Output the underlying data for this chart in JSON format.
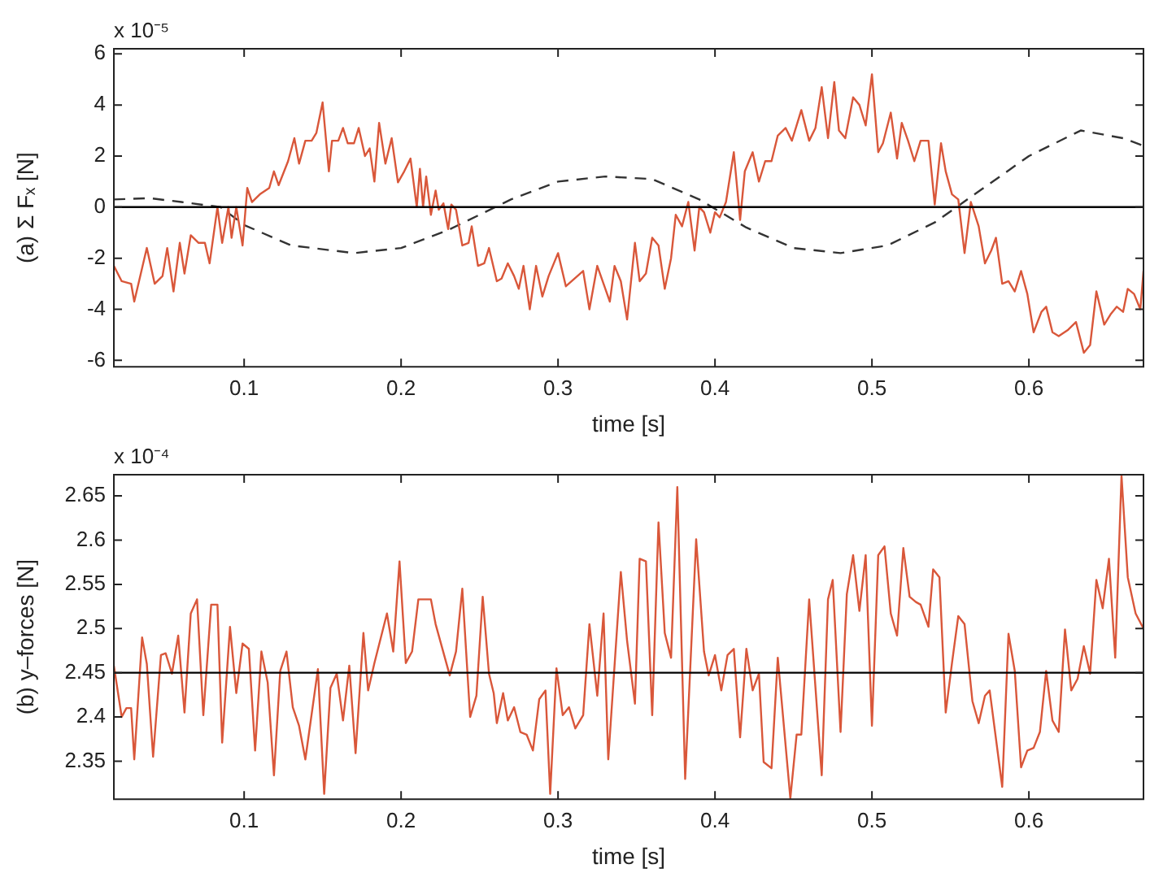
{
  "chart_data": [
    {
      "type": "line",
      "ylabel": "(a) Σ Fₓ [N]",
      "xlabel": "time [s]",
      "annotations": [
        "x 10⁻⁵"
      ],
      "xlim": [
        0.017,
        0.673
      ],
      "xticks": [
        0.1,
        0.2,
        0.3,
        0.4,
        0.5,
        0.6
      ],
      "ylim": [
        -6.25,
        6.2
      ],
      "yticks": [
        -6,
        -4,
        -2,
        0,
        2,
        4,
        6
      ],
      "grid": false,
      "legend": false,
      "marker": "none",
      "ref_lines": [
        {
          "axis": "y",
          "value": 0,
          "color": "#000000"
        }
      ],
      "series": [
        {
          "type": "line",
          "color": "#d9573a",
          "line_style": "solid",
          "x": [
            0.017,
            0.022,
            0.028,
            0.03,
            0.038,
            0.043,
            0.048,
            0.051,
            0.055,
            0.059,
            0.062,
            0.066,
            0.071,
            0.075,
            0.078,
            0.083,
            0.086,
            0.09,
            0.092,
            0.095,
            0.099,
            0.102,
            0.105,
            0.11,
            0.116,
            0.119,
            0.122,
            0.128,
            0.132,
            0.135,
            0.139,
            0.143,
            0.146,
            0.15,
            0.154,
            0.156,
            0.16,
            0.163,
            0.166,
            0.17,
            0.173,
            0.177,
            0.18,
            0.183,
            0.186,
            0.19,
            0.194,
            0.198,
            0.202,
            0.206,
            0.21,
            0.212,
            0.214,
            0.216,
            0.219,
            0.222,
            0.224,
            0.227,
            0.23,
            0.232,
            0.235,
            0.239,
            0.243,
            0.245,
            0.249,
            0.253,
            0.256,
            0.261,
            0.264,
            0.268,
            0.272,
            0.275,
            0.278,
            0.282,
            0.286,
            0.29,
            0.294,
            0.3,
            0.305,
            0.316,
            0.32,
            0.325,
            0.329,
            0.333,
            0.336,
            0.34,
            0.344,
            0.349,
            0.352,
            0.356,
            0.36,
            0.364,
            0.368,
            0.372,
            0.375,
            0.379,
            0.383,
            0.387,
            0.39,
            0.393,
            0.397,
            0.4,
            0.403,
            0.407,
            0.412,
            0.416,
            0.419,
            0.424,
            0.428,
            0.432,
            0.436,
            0.44,
            0.445,
            0.449,
            0.455,
            0.46,
            0.464,
            0.468,
            0.472,
            0.476,
            0.479,
            0.483,
            0.488,
            0.492,
            0.496,
            0.5,
            0.504,
            0.507,
            0.512,
            0.516,
            0.519,
            0.523,
            0.527,
            0.531,
            0.536,
            0.54,
            0.544,
            0.547,
            0.551,
            0.555,
            0.559,
            0.563,
            0.568,
            0.572,
            0.576,
            0.579,
            0.583,
            0.587,
            0.591,
            0.595,
            0.599,
            0.603,
            0.608,
            0.611,
            0.615,
            0.619,
            0.625,
            0.63,
            0.635,
            0.639,
            0.643,
            0.648,
            0.652,
            0.656,
            0.66,
            0.663,
            0.667,
            0.671,
            0.673
          ],
          "values": [
            -2.3,
            -2.9,
            -3.0,
            -3.7,
            -1.6,
            -3.0,
            -2.7,
            -1.6,
            -3.3,
            -1.4,
            -2.6,
            -1.1,
            -1.4,
            -1.4,
            -2.2,
            0,
            -1.4,
            0,
            -1.2,
            0,
            -1.5,
            0.75,
            0.2,
            0.5,
            0.75,
            1.4,
            0.86,
            1.8,
            2.7,
            1.7,
            2.6,
            2.6,
            2.9,
            4.1,
            1.4,
            2.6,
            2.6,
            3.1,
            2.5,
            2.5,
            3.1,
            2.0,
            2.3,
            1.0,
            3.3,
            1.7,
            2.7,
            0.97,
            1.4,
            1.9,
            0,
            1.5,
            0,
            1.2,
            -0.3,
            0.65,
            -0.1,
            0.15,
            -0.86,
            0.1,
            -0.1,
            -1.5,
            -1.4,
            -0.75,
            -2.3,
            -2.2,
            -1.6,
            -2.9,
            -2.8,
            -2.2,
            -2.7,
            -3.2,
            -2.3,
            -4.0,
            -2.3,
            -3.5,
            -2.7,
            -1.8,
            -3.1,
            -2.5,
            -4.0,
            -2.3,
            -3.0,
            -3.7,
            -2.3,
            -2.9,
            -4.4,
            -1.4,
            -2.9,
            -2.6,
            -1.2,
            -1.5,
            -3.2,
            -2.0,
            -0.3,
            -0.75,
            0.2,
            -1.7,
            0,
            -0.2,
            -1.0,
            -0.2,
            -0.4,
            0.2,
            2.15,
            -0.5,
            1.4,
            2.15,
            1.0,
            1.8,
            1.8,
            2.8,
            3.1,
            2.6,
            3.8,
            2.6,
            3.1,
            4.7,
            2.7,
            4.9,
            3.0,
            2.7,
            4.3,
            4.0,
            3.2,
            5.2,
            2.15,
            2.5,
            3.7,
            1.9,
            3.3,
            2.6,
            1.8,
            2.6,
            2.6,
            0.1,
            2.5,
            1.4,
            0.5,
            0.3,
            -1.8,
            0.2,
            -0.75,
            -2.2,
            -1.7,
            -1.2,
            -3.0,
            -2.9,
            -3.3,
            -2.5,
            -3.4,
            -4.9,
            -4.1,
            -3.9,
            -4.9,
            -5.05,
            -4.8,
            -4.5,
            -5.7,
            -5.4,
            -3.3,
            -4.6,
            -4.2,
            -3.9,
            -4.1,
            -3.2,
            -3.4,
            -4.0,
            -2.5
          ]
        },
        {
          "type": "line",
          "color": "#333333",
          "line_style": "dashed",
          "x": [
            0.017,
            0.04,
            0.06,
            0.085,
            0.1,
            0.13,
            0.17,
            0.2,
            0.23,
            0.25,
            0.27,
            0.3,
            0.33,
            0.36,
            0.39,
            0.42,
            0.45,
            0.48,
            0.51,
            0.54,
            0.57,
            0.6,
            0.633,
            0.66,
            0.673
          ],
          "values": [
            0.3,
            0.35,
            0.2,
            0,
            -0.7,
            -1.5,
            -1.8,
            -1.6,
            -0.9,
            -0.3,
            0.3,
            1.0,
            1.2,
            1.1,
            0.3,
            -0.8,
            -1.6,
            -1.8,
            -1.5,
            -0.6,
            0.7,
            2.0,
            3.0,
            2.7,
            2.4
          ]
        }
      ]
    },
    {
      "type": "line",
      "ylabel": "(b) y–forces [N]",
      "xlabel": "time [s]",
      "annotations": [
        "x 10⁻⁴"
      ],
      "xlim": [
        0.017,
        0.673
      ],
      "xticks": [
        0.1,
        0.2,
        0.3,
        0.4,
        0.5,
        0.6
      ],
      "ylim": [
        2.307,
        2.674
      ],
      "yticks": [
        2.35,
        2.4,
        2.45,
        2.5,
        2.55,
        2.6,
        2.65
      ],
      "grid": false,
      "legend": false,
      "marker": "none",
      "ref_lines": [
        {
          "axis": "y",
          "value": 2.45,
          "color": "#000000"
        }
      ],
      "series": [
        {
          "type": "line",
          "color": "#d9573a",
          "line_style": "solid",
          "x": [
            0.017,
            0.022,
            0.025,
            0.028,
            0.03,
            0.035,
            0.038,
            0.042,
            0.047,
            0.05,
            0.054,
            0.058,
            0.062,
            0.066,
            0.07,
            0.074,
            0.079,
            0.083,
            0.086,
            0.091,
            0.095,
            0.099,
            0.103,
            0.107,
            0.111,
            0.115,
            0.119,
            0.123,
            0.127,
            0.131,
            0.135,
            0.139,
            0.147,
            0.151,
            0.155,
            0.159,
            0.163,
            0.167,
            0.171,
            0.176,
            0.179,
            0.183,
            0.191,
            0.195,
            0.199,
            0.203,
            0.207,
            0.211,
            0.215,
            0.219,
            0.222,
            0.231,
            0.235,
            0.239,
            0.244,
            0.248,
            0.252,
            0.256,
            0.259,
            0.261,
            0.265,
            0.268,
            0.272,
            0.276,
            0.28,
            0.284,
            0.288,
            0.292,
            0.295,
            0.299,
            0.303,
            0.307,
            0.311,
            0.316,
            0.32,
            0.325,
            0.329,
            0.332,
            0.34,
            0.344,
            0.349,
            0.352,
            0.356,
            0.36,
            0.364,
            0.368,
            0.372,
            0.376,
            0.381,
            0.388,
            0.393,
            0.396,
            0.4,
            0.404,
            0.408,
            0.412,
            0.416,
            0.42,
            0.424,
            0.428,
            0.431,
            0.436,
            0.44,
            0.448,
            0.452,
            0.455,
            0.46,
            0.468,
            0.472,
            0.475,
            0.48,
            0.484,
            0.488,
            0.492,
            0.496,
            0.5,
            0.504,
            0.508,
            0.512,
            0.516,
            0.52,
            0.524,
            0.528,
            0.531,
            0.536,
            0.539,
            0.543,
            0.547,
            0.551,
            0.555,
            0.559,
            0.564,
            0.568,
            0.572,
            0.575,
            0.583,
            0.587,
            0.591,
            0.595,
            0.599,
            0.603,
            0.607,
            0.611,
            0.615,
            0.619,
            0.623,
            0.627,
            0.631,
            0.635,
            0.639,
            0.643,
            0.647,
            0.651,
            0.655,
            0.659,
            0.663,
            0.668,
            0.673
          ],
          "values": [
            2.458,
            2.4,
            2.41,
            2.41,
            2.352,
            2.49,
            2.46,
            2.355,
            2.47,
            2.472,
            2.449,
            2.492,
            2.405,
            2.517,
            2.533,
            2.402,
            2.527,
            2.527,
            2.371,
            2.502,
            2.427,
            2.483,
            2.477,
            2.362,
            2.474,
            2.439,
            2.334,
            2.452,
            2.474,
            2.411,
            2.39,
            2.352,
            2.454,
            2.313,
            2.433,
            2.449,
            2.396,
            2.458,
            2.359,
            2.495,
            2.43,
            2.461,
            2.517,
            2.474,
            2.576,
            2.461,
            2.474,
            2.533,
            2.533,
            2.533,
            2.505,
            2.447,
            2.474,
            2.545,
            2.4,
            2.424,
            2.536,
            2.449,
            2.427,
            2.393,
            2.427,
            2.396,
            2.411,
            2.383,
            2.38,
            2.362,
            2.42,
            2.43,
            2.313,
            2.455,
            2.402,
            2.411,
            2.387,
            2.402,
            2.505,
            2.424,
            2.517,
            2.352,
            2.564,
            2.486,
            2.415,
            2.579,
            2.576,
            2.402,
            2.62,
            2.495,
            2.467,
            2.66,
            2.33,
            2.601,
            2.474,
            2.447,
            2.47,
            2.43,
            2.47,
            2.477,
            2.377,
            2.477,
            2.43,
            2.449,
            2.349,
            2.342,
            2.467,
            2.308,
            2.38,
            2.38,
            2.533,
            2.334,
            2.533,
            2.555,
            2.383,
            2.539,
            2.583,
            2.52,
            2.583,
            2.39,
            2.583,
            2.593,
            2.517,
            2.492,
            2.591,
            2.536,
            2.53,
            2.527,
            2.502,
            2.567,
            2.558,
            2.405,
            2.461,
            2.514,
            2.505,
            2.418,
            2.393,
            2.424,
            2.43,
            2.321,
            2.494,
            2.452,
            2.343,
            2.362,
            2.365,
            2.383,
            2.452,
            2.396,
            2.383,
            2.499,
            2.43,
            2.443,
            2.48,
            2.449,
            2.555,
            2.523,
            2.579,
            2.467,
            2.673,
            2.558,
            2.517,
            2.5
          ]
        }
      ]
    }
  ]
}
